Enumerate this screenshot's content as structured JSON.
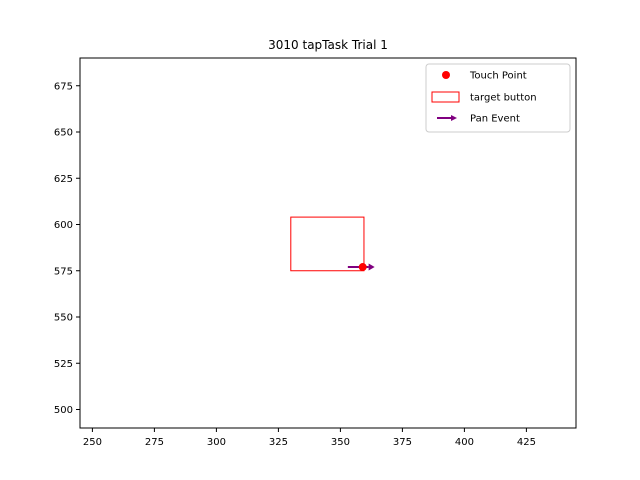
{
  "chart_data": {
    "type": "scatter",
    "title": "3010 tapTask Trial 1",
    "xlabel": "",
    "ylabel": "",
    "xlim": [
      245,
      445
    ],
    "ylim": [
      490,
      690
    ],
    "xticks": [
      250,
      275,
      300,
      325,
      350,
      375,
      400,
      425
    ],
    "yticks": [
      500,
      525,
      550,
      575,
      600,
      625,
      650,
      675
    ],
    "grid": false,
    "legend_position": "top-right",
    "legend": [
      {
        "label": "Touch Point",
        "marker": "circle",
        "color": "#ff0000"
      },
      {
        "label": "target button",
        "marker": "rectangle",
        "color": "#ff0000"
      },
      {
        "label": "Pan Event",
        "marker": "arrow",
        "color": "#800080"
      }
    ],
    "touch_points": [
      {
        "x": 359,
        "y": 577
      }
    ],
    "target_button": {
      "x_min": 330,
      "x_max": 359.5,
      "y_min": 575,
      "y_max": 604
    },
    "pan_events": [
      {
        "x_start": 353,
        "y_start": 577,
        "x_end": 363,
        "y_end": 577
      }
    ],
    "colors": {
      "touch": "#ff0000",
      "target": "#ff0000",
      "pan": "#800080"
    }
  }
}
